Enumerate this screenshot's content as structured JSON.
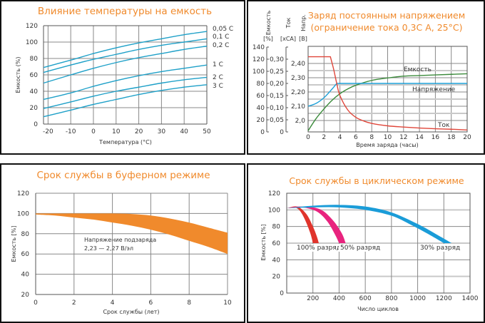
{
  "chart_data": [
    {
      "id": "temp",
      "type": "line",
      "title": "Влияние температуры на емкость",
      "xlabel": "Температура (°C)",
      "ylabel": "Емкость (%)",
      "xlim": [
        -22,
        50
      ],
      "ylim": [
        0,
        120
      ],
      "xticks": [
        -20,
        -10,
        0,
        10,
        20,
        30,
        40,
        50
      ],
      "yticks": [
        0,
        20,
        40,
        60,
        80,
        100,
        120
      ],
      "grid": true,
      "line_color": "#1ea0c8",
      "x": [
        -22,
        -10,
        0,
        10,
        20,
        30,
        40,
        50
      ],
      "series": [
        {
          "name": "0,05 C",
          "values": [
            69,
            78,
            86,
            93,
            99,
            104,
            109,
            113
          ]
        },
        {
          "name": "0,1 C",
          "values": [
            63,
            72,
            79,
            85,
            91,
            96,
            100,
            104
          ]
        },
        {
          "name": "0,2 C",
          "values": [
            50,
            60,
            68,
            75,
            81,
            86,
            91,
            95
          ]
        },
        {
          "name": "1 C",
          "values": [
            30,
            38,
            46,
            53,
            59,
            64,
            68,
            72
          ]
        },
        {
          "name": "2 C",
          "values": [
            19,
            27,
            34,
            40,
            45,
            50,
            54,
            57
          ]
        },
        {
          "name": "3 C",
          "values": [
            9,
            17,
            24,
            30,
            36,
            41,
            45,
            48
          ]
        }
      ]
    },
    {
      "id": "charge",
      "type": "line",
      "title": "Заряд постоянным напряжением",
      "subtitle": "(ограничение тока 0,3С А, 25°С)",
      "xlabel": "Время заряда (часы)",
      "xlim": [
        0,
        20
      ],
      "xticks": [
        0,
        2,
        4,
        6,
        8,
        10,
        12,
        14,
        16,
        18,
        20
      ],
      "grid": true,
      "axes": [
        {
          "name": "Емкость",
          "unit": "[%]",
          "ticks": [
            "0",
            "20",
            "40",
            "60",
            "80",
            "100",
            "120",
            "140"
          ],
          "lim": [
            0,
            140
          ]
        },
        {
          "name": "Ток",
          "unit": "[xCA]",
          "ticks": [
            "0",
            "0,05",
            "0,10",
            "0,15",
            "0,20",
            "0,25",
            "0,30"
          ],
          "lim": [
            0,
            0.35
          ]
        },
        {
          "name": "Напр.",
          "unit": "[В]",
          "ticks": [
            "2,0",
            "2,10",
            "2,20",
            "2,30",
            "2,40"
          ],
          "lim": [
            1.94,
            2.5
          ]
        }
      ],
      "series": [
        {
          "name": "Емкость",
          "axis": "Емкость",
          "color": "#3a8a3a",
          "x": [
            0,
            1,
            2,
            3,
            4,
            5,
            6,
            8,
            10,
            12,
            14,
            16,
            18,
            20
          ],
          "values": [
            2,
            22,
            38,
            52,
            63,
            71,
            77,
            85,
            89,
            92,
            93,
            94,
            95,
            96
          ]
        },
        {
          "name": "Напряжение",
          "axis": "Напр.",
          "color": "#1ea0d8",
          "x": [
            0,
            1,
            2,
            3,
            3.6,
            20
          ],
          "values": [
            2.1,
            2.12,
            2.16,
            2.22,
            2.26,
            2.26
          ]
        },
        {
          "name": "Ток",
          "axis": "Ток",
          "color": "#e0463a",
          "x": [
            0,
            2.8,
            3.2,
            3.6,
            4,
            5,
            6,
            7,
            8,
            10,
            12,
            14,
            16,
            18,
            20
          ],
          "values": [
            0.31,
            0.31,
            0.26,
            0.2,
            0.15,
            0.09,
            0.06,
            0.045,
            0.035,
            0.025,
            0.02,
            0.016,
            0.013,
            0.011,
            0.008
          ]
        }
      ]
    },
    {
      "id": "float",
      "type": "area",
      "title": "Срок службы в буферном режиме",
      "xlabel": "Срок службы (лет)",
      "ylabel": "Емкость [%]",
      "xlim": [
        0,
        10
      ],
      "ylim": [
        20,
        120
      ],
      "xticks": [
        0,
        2,
        4,
        6,
        8,
        10
      ],
      "yticks": [
        20,
        40,
        60,
        80,
        100,
        120
      ],
      "grid": true,
      "color": "#f08a2c",
      "annotation": [
        "Напряжение подзаряда",
        "2,23 — 2,27 В/эл"
      ],
      "x": [
        0,
        1,
        2,
        3,
        4,
        5,
        6,
        7,
        8,
        9,
        10
      ],
      "upper": [
        100,
        100,
        100,
        100,
        100,
        99.5,
        98,
        95,
        91,
        86,
        81
      ],
      "lower": [
        99,
        98,
        96,
        94,
        91,
        88,
        84,
        79,
        73,
        67,
        60
      ]
    },
    {
      "id": "cycle",
      "type": "area",
      "title": "Срок службы в циклическом режиме",
      "xlabel": "Число циклов",
      "ylabel": "Емкость [%]",
      "xlim": [
        0,
        1400
      ],
      "ylim": [
        0,
        120
      ],
      "xticks": [
        0,
        200,
        400,
        600,
        800,
        1000,
        1200,
        1400
      ],
      "yticks": [
        0,
        20,
        40,
        60,
        80,
        100,
        120
      ],
      "grid": true,
      "series": [
        {
          "name": "100% разряд",
          "color": "#e0342c",
          "outer": [
            [
              0,
              102
            ],
            [
              80,
              104
            ],
            [
              150,
              95
            ],
            [
              200,
              80
            ],
            [
              230,
              68
            ],
            [
              245,
              60
            ]
          ],
          "inner": [
            [
              200,
              60
            ],
            [
              180,
              72
            ],
            [
              140,
              88
            ],
            [
              100,
              99
            ],
            [
              60,
              103
            ],
            [
              0,
              102
            ]
          ]
        },
        {
          "name": "50% разряд",
          "color": "#e8237e",
          "outer": [
            [
              0,
              102
            ],
            [
              100,
              104
            ],
            [
              250,
              101
            ],
            [
              350,
              88
            ],
            [
              420,
              72
            ],
            [
              450,
              60
            ]
          ],
          "inner": [
            [
              400,
              60
            ],
            [
              370,
              70
            ],
            [
              310,
              86
            ],
            [
              230,
              98
            ],
            [
              120,
              103
            ],
            [
              0,
              102
            ]
          ]
        },
        {
          "name": "30% разряд",
          "color": "#1a9cd8",
          "outer": [
            [
              0,
              102
            ],
            [
              200,
              105
            ],
            [
              400,
              106
            ],
            [
              600,
              104
            ],
            [
              800,
              97
            ],
            [
              1000,
              83
            ],
            [
              1150,
              70
            ],
            [
              1260,
              60
            ]
          ],
          "inner": [
            [
              1200,
              60
            ],
            [
              1080,
              71
            ],
            [
              950,
              82
            ],
            [
              800,
              93
            ],
            [
              600,
              100
            ],
            [
              400,
              103
            ],
            [
              200,
              103
            ],
            [
              0,
              102
            ]
          ]
        }
      ]
    }
  ]
}
